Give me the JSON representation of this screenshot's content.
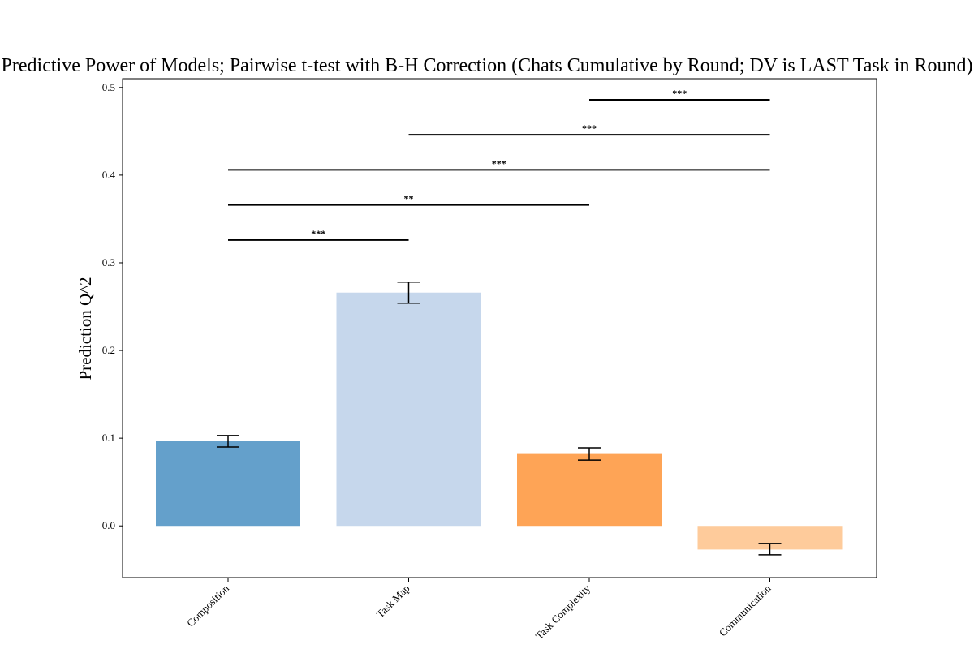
{
  "chart_data": {
    "type": "bar",
    "title": "Predictive Power of Models; Pairwise t-test with B-H Correction (Chats Cumulative by Round; DV is LAST Task in Round)",
    "xlabel": "",
    "ylabel": "Prediction Q^2",
    "ylim": [
      -0.059,
      0.51
    ],
    "yticks": [
      0.0,
      0.1,
      0.2,
      0.3,
      0.4,
      0.5
    ],
    "ytick_labels": [
      "0.0",
      "0.1",
      "0.2",
      "0.3",
      "0.4",
      "0.5"
    ],
    "categories": [
      "Composition",
      "Task Map",
      "Task Complexity",
      "Communication"
    ],
    "values": [
      0.097,
      0.266,
      0.082,
      -0.027
    ],
    "error_low": [
      0.09,
      0.254,
      0.075,
      -0.033
    ],
    "error_high": [
      0.103,
      0.278,
      0.089,
      -0.02
    ],
    "colors": [
      "#64a0cb",
      "#c6d7ec",
      "#fea456",
      "#fecb9b"
    ],
    "grid": false,
    "significance": [
      {
        "from": 0,
        "to": 1,
        "y": 0.326,
        "label": "***"
      },
      {
        "from": 0,
        "to": 2,
        "y": 0.366,
        "label": "**"
      },
      {
        "from": 0,
        "to": 3,
        "y": 0.406,
        "label": "***"
      },
      {
        "from": 1,
        "to": 3,
        "y": 0.446,
        "label": "***"
      },
      {
        "from": 2,
        "to": 3,
        "y": 0.486,
        "label": "***"
      }
    ]
  }
}
